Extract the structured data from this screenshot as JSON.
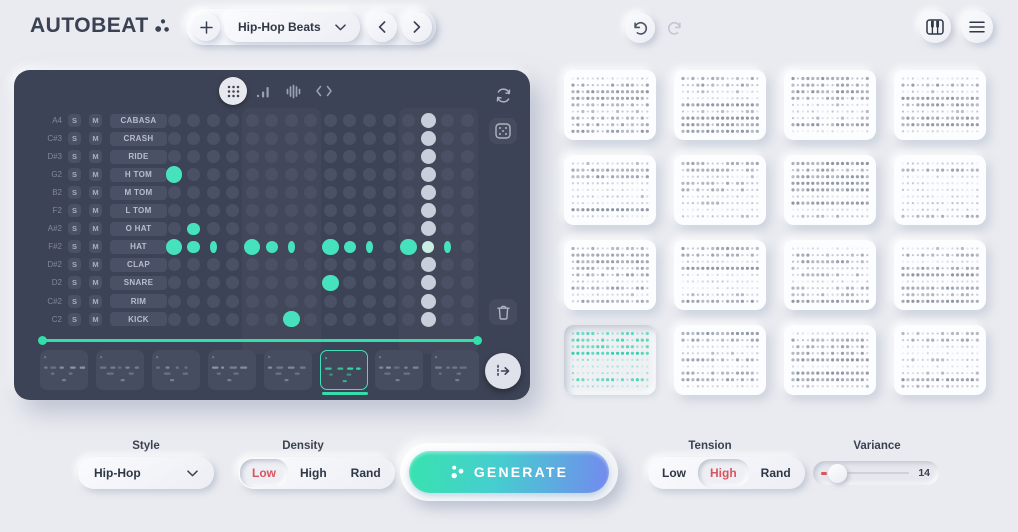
{
  "header": {
    "logo_text": "AUTOBEAT",
    "preset": {
      "name": "Hip-Hop Beats"
    }
  },
  "panel": {
    "solo_label": "S",
    "mute_label": "M",
    "columns": 16,
    "playhead_column": 14,
    "tracks": [
      {
        "note": "A4",
        "name": "CABASA",
        "steps": []
      },
      {
        "note": "C#3",
        "name": "CRASH",
        "steps": []
      },
      {
        "note": "D#3",
        "name": "RIDE",
        "steps": []
      },
      {
        "note": "G2",
        "name": "H TOM",
        "steps": [
          {
            "col": 1,
            "vel": 3
          }
        ]
      },
      {
        "note": "B2",
        "name": "M TOM",
        "steps": []
      },
      {
        "note": "F2",
        "name": "L TOM",
        "steps": []
      },
      {
        "note": "A#2",
        "name": "O HAT",
        "steps": [
          {
            "col": 2,
            "vel": 2
          }
        ]
      },
      {
        "note": "F#2",
        "name": "HAT",
        "steps": [
          {
            "col": 1,
            "vel": 3
          },
          {
            "col": 2,
            "vel": 2
          },
          {
            "col": 3,
            "vel": 1
          },
          {
            "col": 5,
            "vel": 3
          },
          {
            "col": 6,
            "vel": 2
          },
          {
            "col": 7,
            "vel": 1
          },
          {
            "col": 9,
            "vel": 3
          },
          {
            "col": 10,
            "vel": 2
          },
          {
            "col": 11,
            "vel": 1
          },
          {
            "col": 13,
            "vel": 3
          },
          {
            "col": 14,
            "vel": 2
          },
          {
            "col": 15,
            "vel": 1
          }
        ]
      },
      {
        "note": "D#2",
        "name": "CLAP",
        "steps": []
      },
      {
        "note": "D2",
        "name": "SNARE",
        "steps": [
          {
            "col": 9,
            "vel": 3
          }
        ]
      },
      {
        "note": "C#2",
        "name": "RIM",
        "steps": []
      },
      {
        "note": "C2",
        "name": "KICK",
        "steps": [
          {
            "col": 7,
            "vel": 3
          }
        ]
      }
    ],
    "pages": {
      "count": 8,
      "selected_index": 5
    }
  },
  "library": {
    "rows": 4,
    "columns": 4,
    "selected_index": 12
  },
  "controls": {
    "style": {
      "label": "Style",
      "value": "Hip-Hop"
    },
    "density": {
      "label": "Density",
      "options": [
        "Low",
        "High",
        "Rand"
      ],
      "selected": "Low"
    },
    "generate_label": "GENERATE",
    "tension": {
      "label": "Tension",
      "options": [
        "Low",
        "High",
        "Rand"
      ],
      "selected": "High"
    },
    "variance": {
      "label": "Variance",
      "value": "14"
    }
  },
  "icons": [
    "autobeat-dots-icon",
    "plus-icon",
    "chevron-down-icon",
    "chevron-left-icon",
    "chevron-right-icon",
    "undo-icon",
    "redo-icon",
    "piano-icon",
    "menu-icon",
    "grid-view-icon",
    "meter-icon",
    "eq-icon",
    "code-icon",
    "refresh-icon",
    "dice-icon",
    "trash-icon",
    "advance-icon",
    "generate-dots-icon"
  ],
  "colors": {
    "accent_teal": "#46e2bd",
    "loop_line_teal": "#34deaa",
    "accent_red": "#da5560",
    "panel_bg": "#3d4356",
    "page_bg": "#e9ebf0",
    "inactive_dot": "#4a5165",
    "playhead_dot": "#c9cedb",
    "generate_gradient_start": "#38e3ae",
    "generate_gradient_end": "#7489ef"
  }
}
